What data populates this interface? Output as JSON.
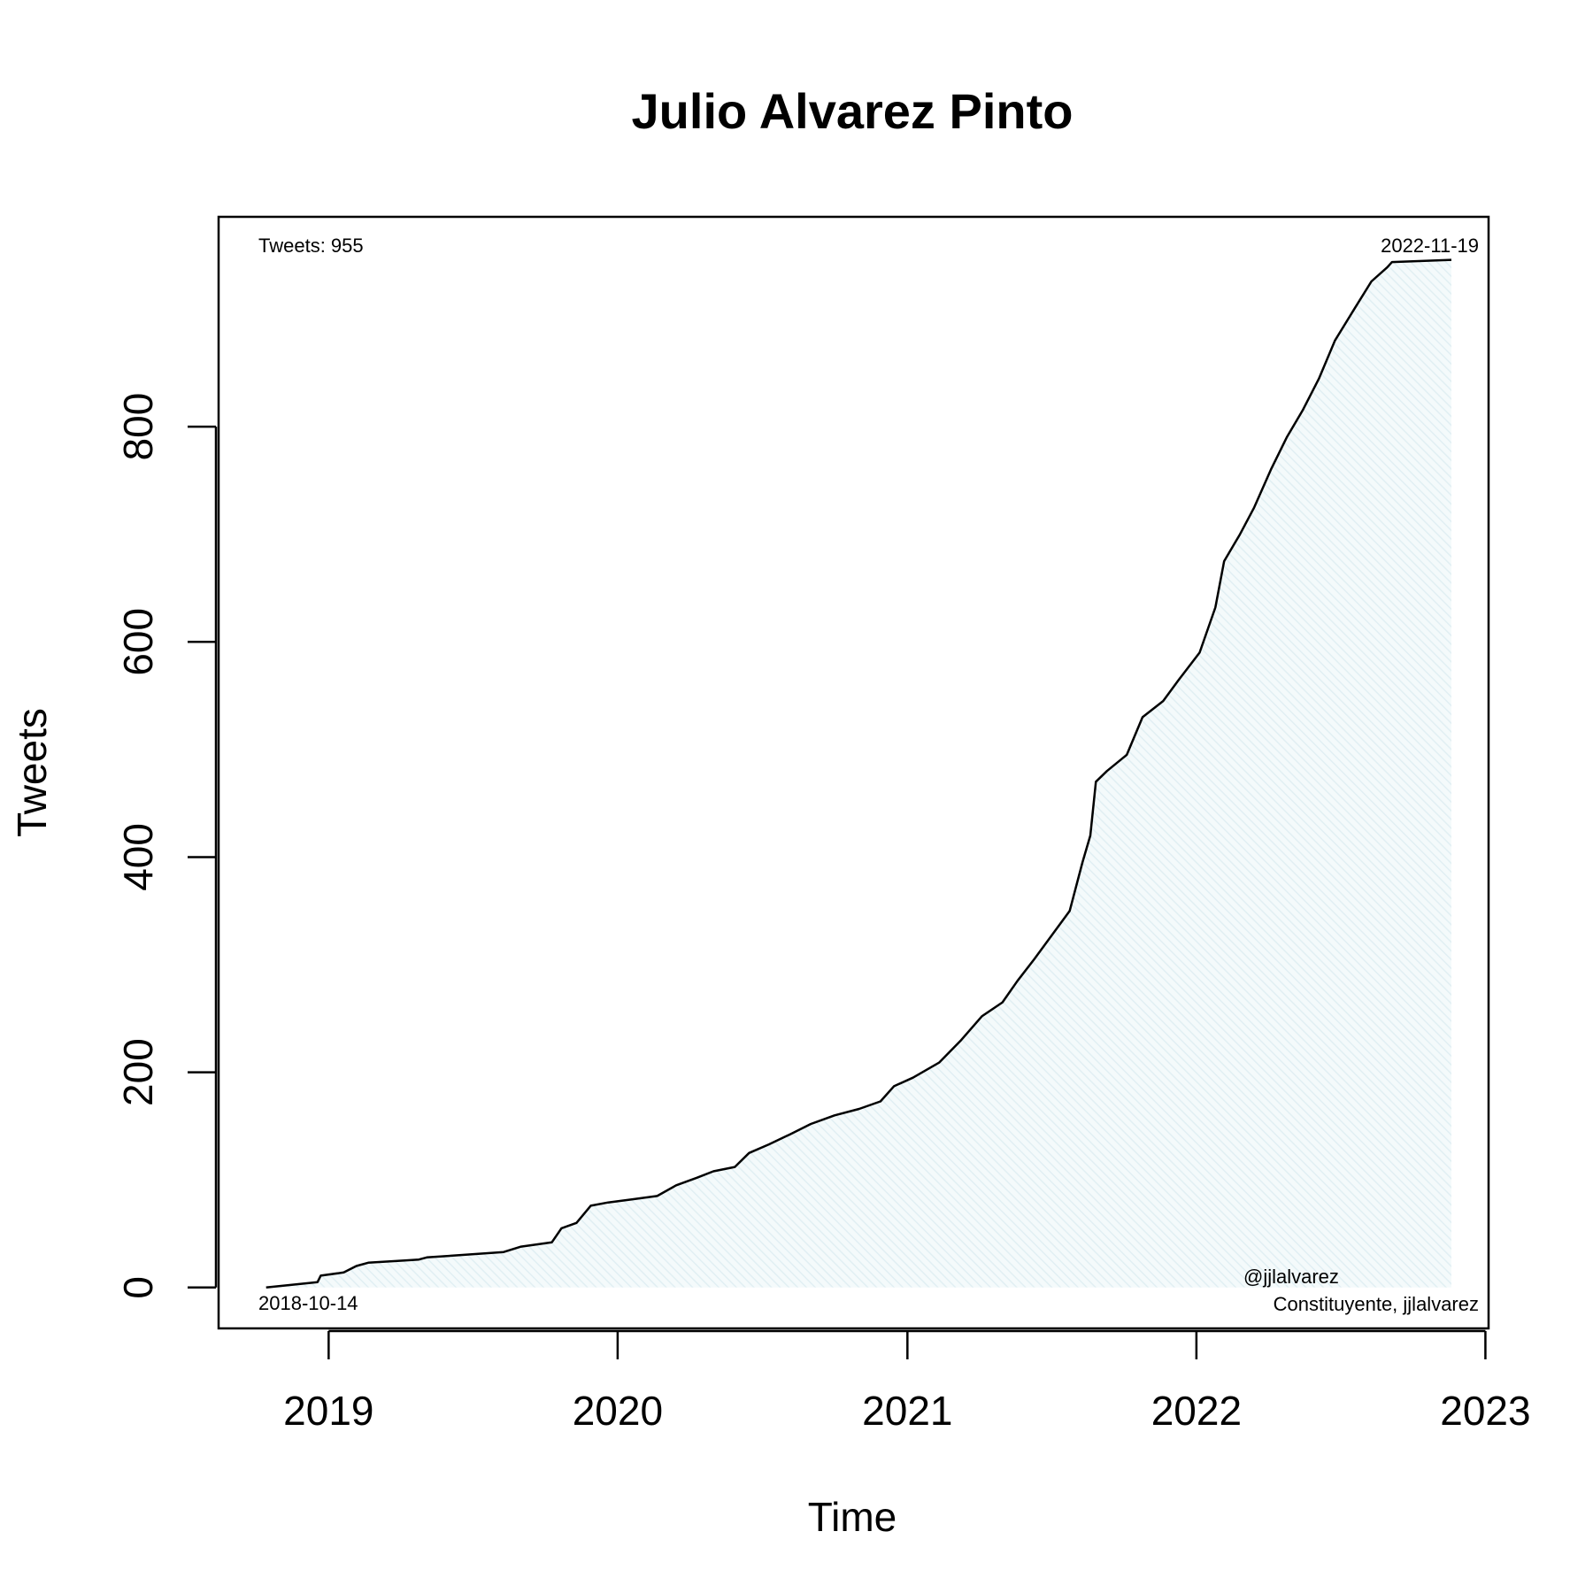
{
  "chart_data": {
    "type": "area",
    "title": "Julio Alvarez Pinto",
    "xlabel": "Time",
    "ylabel": "Tweets",
    "xlim": [
      "2018-08-15",
      "2023-01-05"
    ],
    "ylim": [
      -38,
      995
    ],
    "x_ticks": [
      "2019-01-01",
      "2020-01-01",
      "2021-01-01",
      "2022-01-01",
      "2023-01-01"
    ],
    "x_tick_labels": [
      "2019",
      "2020",
      "2021",
      "2022",
      "2023"
    ],
    "y_ticks": [
      0,
      200,
      400,
      600,
      800
    ],
    "y_tick_labels": [
      "0",
      "200",
      "400",
      "600",
      "800"
    ],
    "grid": false,
    "fill_color": "#e4f2f5",
    "line_color": "#000000",
    "annotations": {
      "tweets_count": "Tweets: 955",
      "start_date": "2018-10-14",
      "end_date": "2022-11-19",
      "handle": "@jjlalvarez",
      "subtitle": "Constituyente, jjlalvarez"
    },
    "series": [
      {
        "points": [
          [
            "2018-10-14",
            0
          ],
          [
            "2018-12-18",
            5
          ],
          [
            "2018-12-22",
            11
          ],
          [
            "2019-01-20",
            14
          ],
          [
            "2019-02-05",
            20
          ],
          [
            "2019-02-20",
            23
          ],
          [
            "2019-04-05",
            25
          ],
          [
            "2019-04-25",
            26
          ],
          [
            "2019-05-05",
            28
          ],
          [
            "2019-06-15",
            30
          ],
          [
            "2019-08-10",
            33
          ],
          [
            "2019-09-01",
            38
          ],
          [
            "2019-10-10",
            42
          ],
          [
            "2019-10-22",
            55
          ],
          [
            "2019-11-10",
            60
          ],
          [
            "2019-11-28",
            76
          ],
          [
            "2019-12-20",
            79
          ],
          [
            "2020-01-20",
            82
          ],
          [
            "2020-02-20",
            85
          ],
          [
            "2020-03-15",
            95
          ],
          [
            "2020-04-10",
            102
          ],
          [
            "2020-05-01",
            108
          ],
          [
            "2020-05-28",
            112
          ],
          [
            "2020-06-15",
            125
          ],
          [
            "2020-07-10",
            133
          ],
          [
            "2020-08-05",
            142
          ],
          [
            "2020-09-01",
            152
          ],
          [
            "2020-10-01",
            160
          ],
          [
            "2020-11-01",
            166
          ],
          [
            "2020-11-28",
            173
          ],
          [
            "2020-12-15",
            187
          ],
          [
            "2021-01-08",
            195
          ],
          [
            "2021-02-10",
            209
          ],
          [
            "2021-03-10",
            230
          ],
          [
            "2021-04-05",
            252
          ],
          [
            "2021-05-01",
            265
          ],
          [
            "2021-05-20",
            285
          ],
          [
            "2021-06-10",
            305
          ],
          [
            "2021-07-05",
            330
          ],
          [
            "2021-07-25",
            350
          ],
          [
            "2021-08-10",
            395
          ],
          [
            "2021-08-20",
            420
          ],
          [
            "2021-08-27",
            470
          ],
          [
            "2021-09-10",
            480
          ],
          [
            "2021-10-05",
            495
          ],
          [
            "2021-10-25",
            530
          ],
          [
            "2021-11-20",
            545
          ],
          [
            "2021-12-10",
            565
          ],
          [
            "2022-01-05",
            590
          ],
          [
            "2022-01-25",
            632
          ],
          [
            "2022-02-05",
            675
          ],
          [
            "2022-02-25",
            700
          ],
          [
            "2022-03-15",
            725
          ],
          [
            "2022-04-05",
            760
          ],
          [
            "2022-04-25",
            790
          ],
          [
            "2022-05-15",
            815
          ],
          [
            "2022-06-05",
            845
          ],
          [
            "2022-06-25",
            880
          ],
          [
            "2022-07-20",
            910
          ],
          [
            "2022-08-10",
            935
          ],
          [
            "2022-08-30",
            948
          ],
          [
            "2022-09-05",
            953
          ],
          [
            "2022-11-19",
            955
          ]
        ]
      }
    ]
  }
}
